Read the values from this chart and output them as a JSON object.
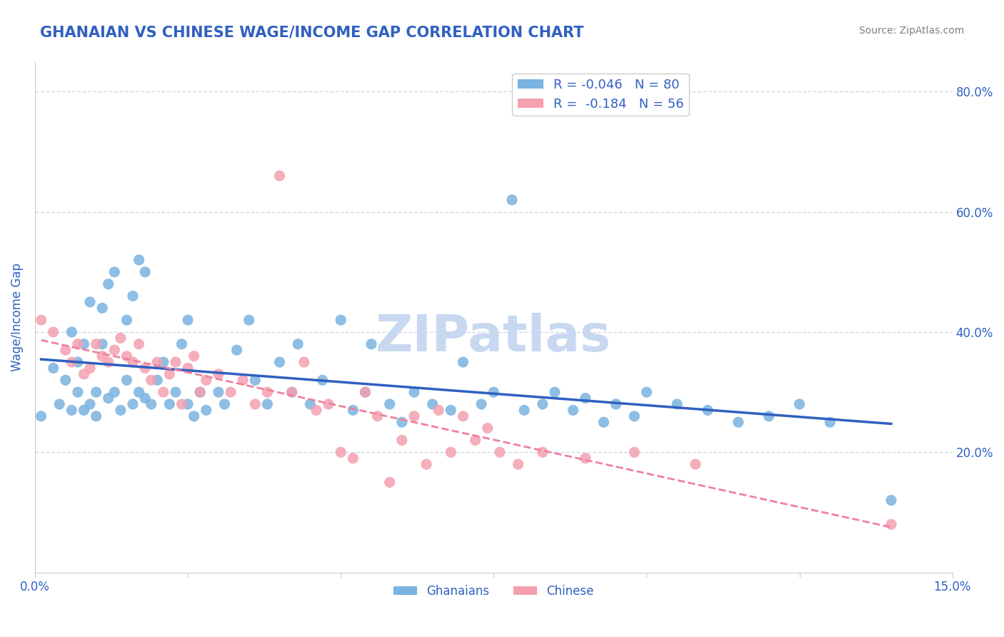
{
  "title": "GHANAIAN VS CHINESE WAGE/INCOME GAP CORRELATION CHART",
  "source_text": "Source: ZipAtlas.com",
  "ylabel": "Wage/Income Gap",
  "xlim": [
    0.0,
    0.15
  ],
  "ylim": [
    0.0,
    0.85
  ],
  "yticks_right": [
    0.2,
    0.4,
    0.6,
    0.8
  ],
  "ytick_labels_right": [
    "20.0%",
    "40.0%",
    "60.0%",
    "80.0%"
  ],
  "xticks": [
    0.0,
    0.025,
    0.05,
    0.075,
    0.1,
    0.125,
    0.15
  ],
  "xtick_labels": [
    "0.0%",
    "",
    "",
    "",
    "",
    "",
    "15.0%"
  ],
  "ghanaian_R": -0.046,
  "ghanaian_N": 80,
  "chinese_R": -0.184,
  "chinese_N": 56,
  "ghanaian_color": "#7ab3e0",
  "chinese_color": "#f4a0b0",
  "ghanaian_line_color": "#3060c0",
  "chinese_line_color": "#f080a0",
  "title_color": "#3060c0",
  "title_fontsize": 15,
  "legend_fontsize": 13,
  "axis_label_color": "#3060c0",
  "tick_label_color": "#3060c0",
  "watermark_text": "ZIPatlas",
  "watermark_color": "#c8d8f0",
  "watermark_fontsize": 52,
  "grid_color": "#d0d8e8",
  "ghanaian_x": [
    0.001,
    0.003,
    0.004,
    0.005,
    0.006,
    0.006,
    0.007,
    0.007,
    0.008,
    0.008,
    0.009,
    0.009,
    0.01,
    0.01,
    0.011,
    0.011,
    0.012,
    0.012,
    0.013,
    0.013,
    0.014,
    0.015,
    0.015,
    0.016,
    0.016,
    0.017,
    0.017,
    0.018,
    0.018,
    0.019,
    0.02,
    0.021,
    0.022,
    0.023,
    0.024,
    0.025,
    0.025,
    0.026,
    0.027,
    0.028,
    0.03,
    0.031,
    0.033,
    0.035,
    0.036,
    0.038,
    0.04,
    0.042,
    0.043,
    0.045,
    0.047,
    0.05,
    0.052,
    0.054,
    0.055,
    0.058,
    0.06,
    0.062,
    0.065,
    0.068,
    0.07,
    0.073,
    0.075,
    0.078,
    0.08,
    0.083,
    0.085,
    0.088,
    0.09,
    0.093,
    0.095,
    0.098,
    0.1,
    0.105,
    0.11,
    0.115,
    0.12,
    0.125,
    0.13,
    0.14
  ],
  "ghanaian_y": [
    0.26,
    0.34,
    0.28,
    0.32,
    0.27,
    0.4,
    0.3,
    0.35,
    0.27,
    0.38,
    0.28,
    0.45,
    0.3,
    0.26,
    0.38,
    0.44,
    0.48,
    0.29,
    0.3,
    0.5,
    0.27,
    0.32,
    0.42,
    0.46,
    0.28,
    0.52,
    0.3,
    0.29,
    0.5,
    0.28,
    0.32,
    0.35,
    0.28,
    0.3,
    0.38,
    0.28,
    0.42,
    0.26,
    0.3,
    0.27,
    0.3,
    0.28,
    0.37,
    0.42,
    0.32,
    0.28,
    0.35,
    0.3,
    0.38,
    0.28,
    0.32,
    0.42,
    0.27,
    0.3,
    0.38,
    0.28,
    0.25,
    0.3,
    0.28,
    0.27,
    0.35,
    0.28,
    0.3,
    0.62,
    0.27,
    0.28,
    0.3,
    0.27,
    0.29,
    0.25,
    0.28,
    0.26,
    0.3,
    0.28,
    0.27,
    0.25,
    0.26,
    0.28,
    0.25,
    0.12
  ],
  "chinese_x": [
    0.001,
    0.003,
    0.005,
    0.006,
    0.007,
    0.008,
    0.009,
    0.01,
    0.011,
    0.012,
    0.013,
    0.014,
    0.015,
    0.016,
    0.017,
    0.018,
    0.019,
    0.02,
    0.021,
    0.022,
    0.023,
    0.024,
    0.025,
    0.026,
    0.027,
    0.028,
    0.03,
    0.032,
    0.034,
    0.036,
    0.038,
    0.04,
    0.042,
    0.044,
    0.046,
    0.048,
    0.05,
    0.052,
    0.054,
    0.056,
    0.058,
    0.06,
    0.062,
    0.064,
    0.066,
    0.068,
    0.07,
    0.072,
    0.074,
    0.076,
    0.079,
    0.083,
    0.09,
    0.098,
    0.108,
    0.14
  ],
  "chinese_y": [
    0.42,
    0.4,
    0.37,
    0.35,
    0.38,
    0.33,
    0.34,
    0.38,
    0.36,
    0.35,
    0.37,
    0.39,
    0.36,
    0.35,
    0.38,
    0.34,
    0.32,
    0.35,
    0.3,
    0.33,
    0.35,
    0.28,
    0.34,
    0.36,
    0.3,
    0.32,
    0.33,
    0.3,
    0.32,
    0.28,
    0.3,
    0.66,
    0.3,
    0.35,
    0.27,
    0.28,
    0.2,
    0.19,
    0.3,
    0.26,
    0.15,
    0.22,
    0.26,
    0.18,
    0.27,
    0.2,
    0.26,
    0.22,
    0.24,
    0.2,
    0.18,
    0.2,
    0.19,
    0.2,
    0.18,
    0.08
  ]
}
